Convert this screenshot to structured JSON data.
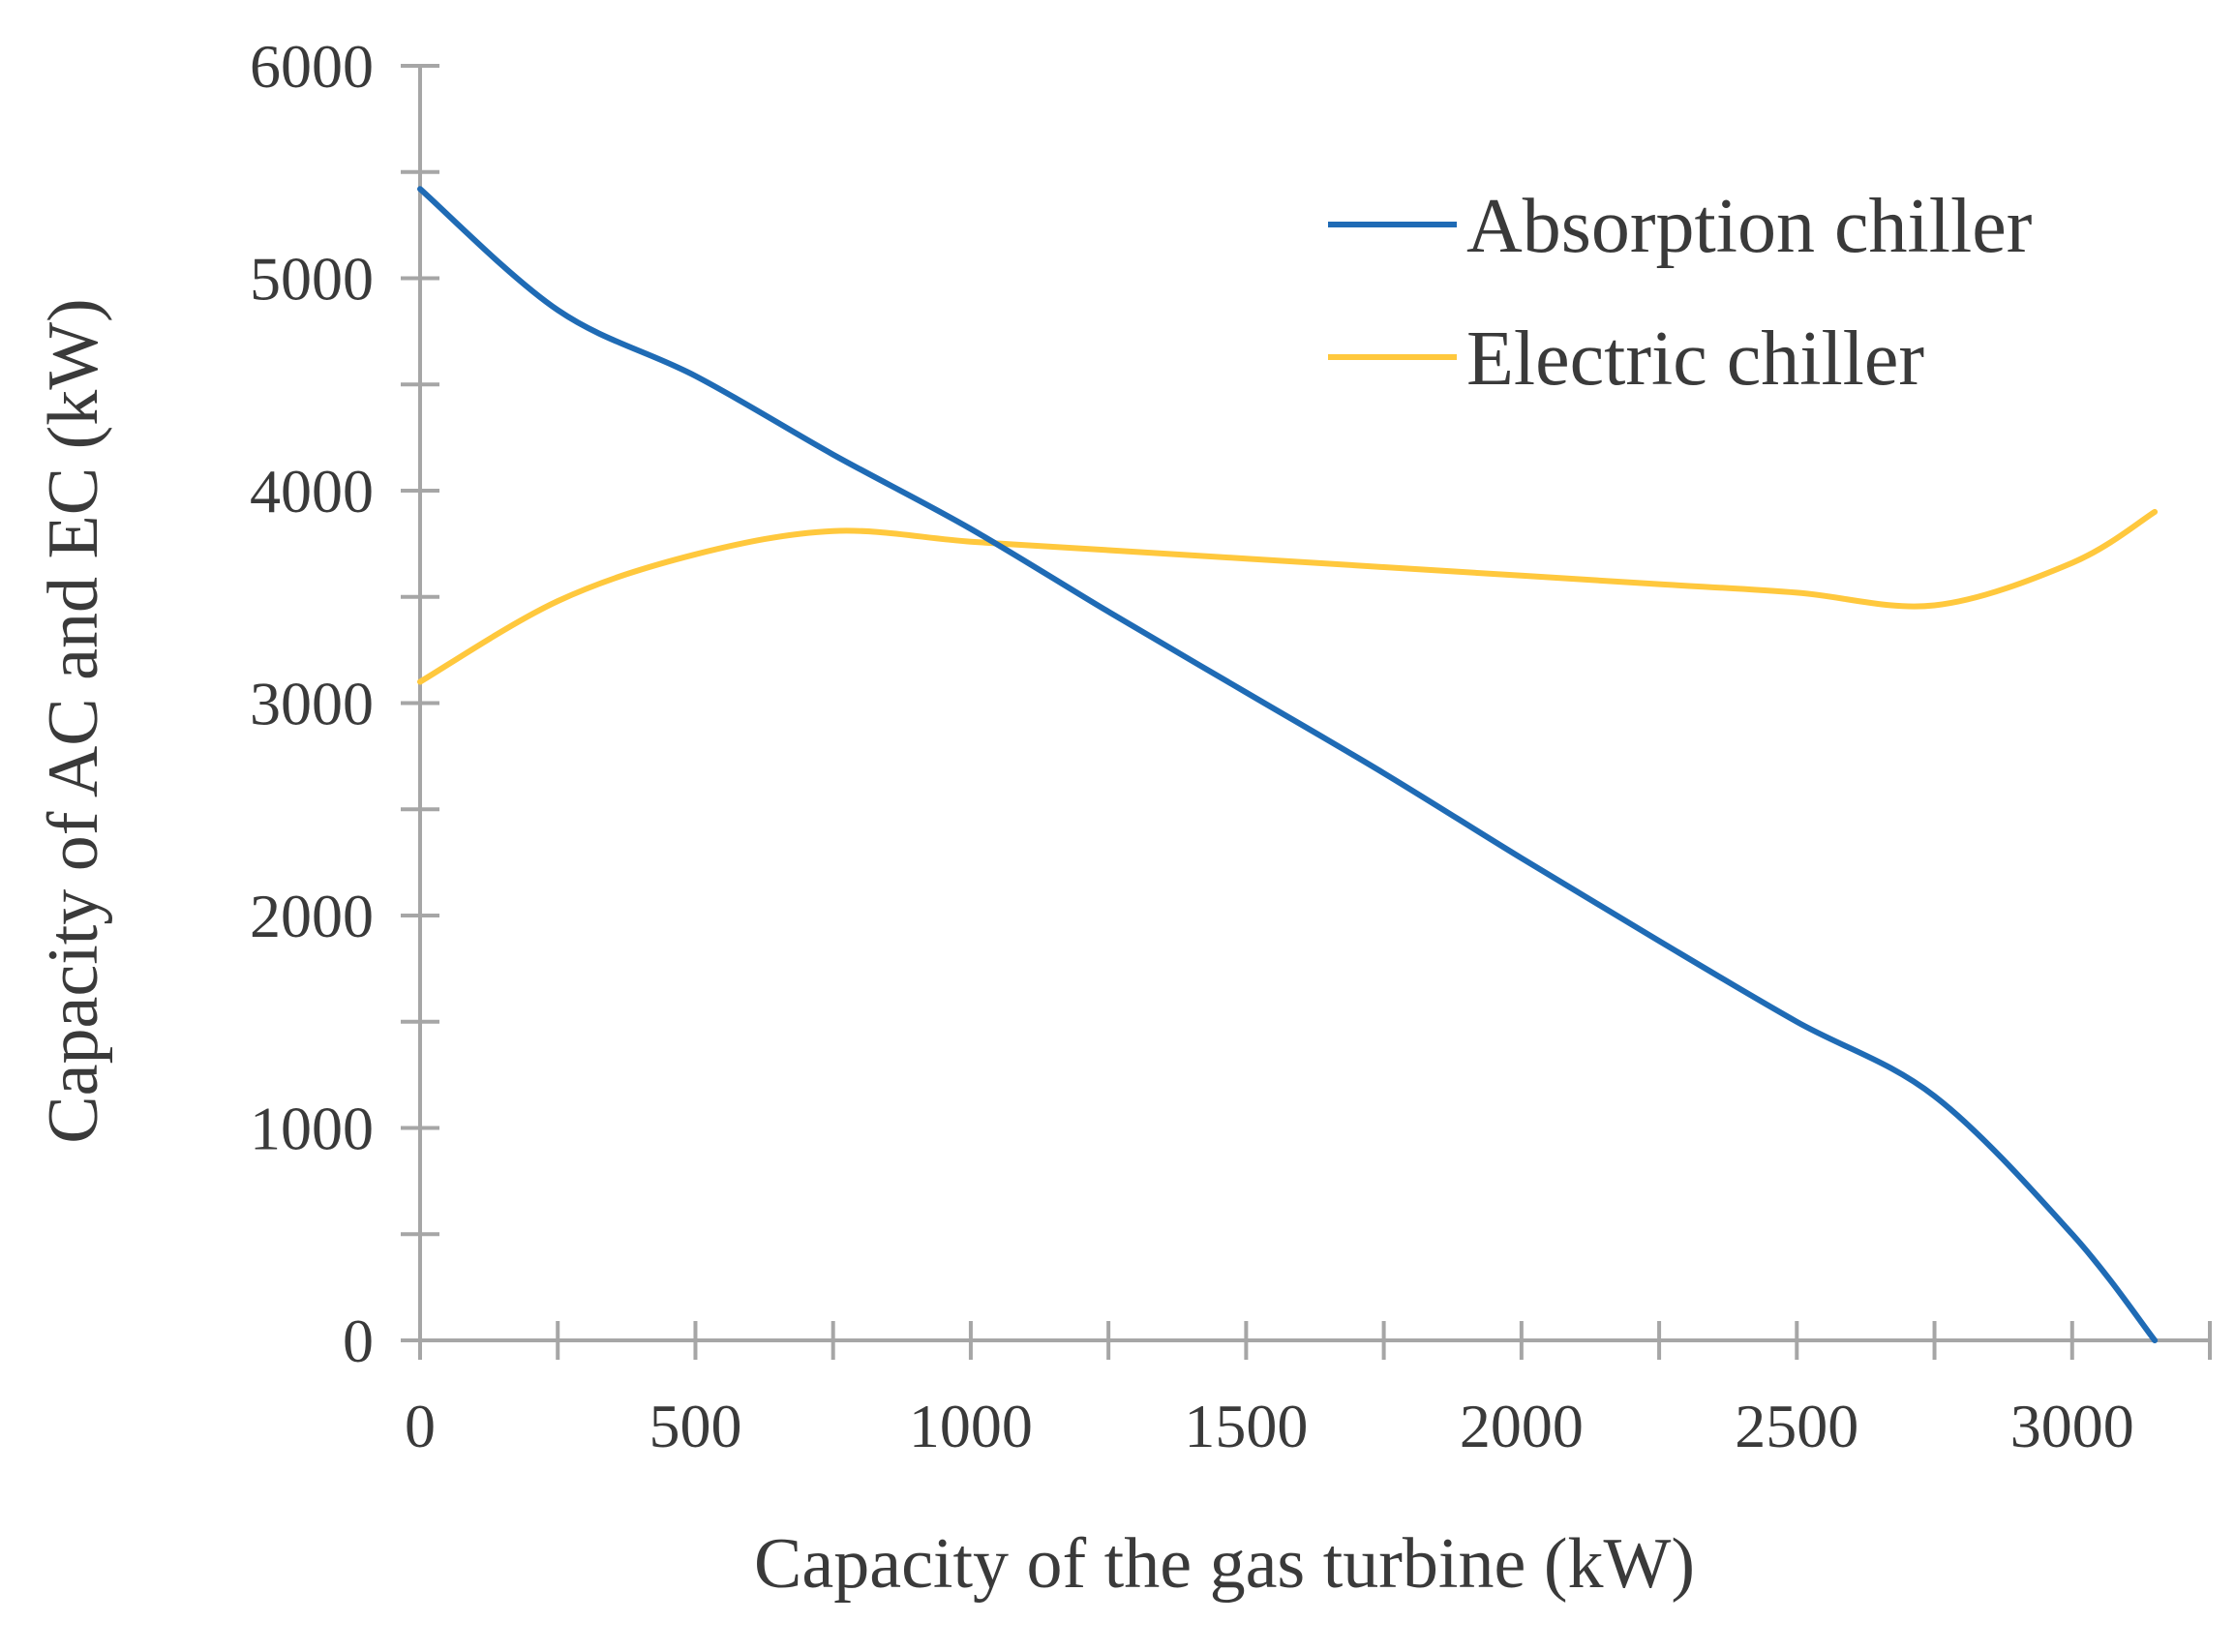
{
  "chart_data": {
    "type": "line",
    "title": "",
    "xlabel": "Capacity  of the gas  turbine  (kW)",
    "ylabel": "Capacity  of AC and EC (kW)",
    "xlim": [
      0,
      3250
    ],
    "ylim": [
      0,
      6000
    ],
    "x_ticks": [
      0,
      500,
      1000,
      1500,
      2000,
      2500,
      3000
    ],
    "y_ticks": [
      0,
      1000,
      2000,
      3000,
      4000,
      5000,
      6000
    ],
    "x_tick_labels": [
      "0",
      "500",
      "1000",
      "1500",
      "2000",
      "2500",
      "3000"
    ],
    "y_tick_labels": [
      "0",
      "1000",
      "2000",
      "3000",
      "4000",
      "5000",
      "6000"
    ],
    "grid": false,
    "legend_position": "top-right",
    "series": [
      {
        "name": "Absorption chiller",
        "color": "#1f6bb5",
        "x": [
          0,
          250,
          500,
          750,
          1000,
          1250,
          1500,
          1750,
          2000,
          2250,
          2500,
          2750,
          3000,
          3150
        ],
        "y": [
          5420,
          4850,
          4540,
          4170,
          3820,
          3430,
          3050,
          2670,
          2270,
          1880,
          1500,
          1150,
          500,
          0
        ]
      },
      {
        "name": "Electric chiller",
        "color": "#ffc83d",
        "x": [
          0,
          250,
          500,
          750,
          1000,
          1250,
          1500,
          1750,
          2000,
          2250,
          2500,
          2750,
          3000,
          3150
        ],
        "y": [
          3100,
          3480,
          3700,
          3810,
          3760,
          3720,
          3680,
          3640,
          3600,
          3560,
          3520,
          3460,
          3660,
          3900
        ]
      }
    ]
  }
}
